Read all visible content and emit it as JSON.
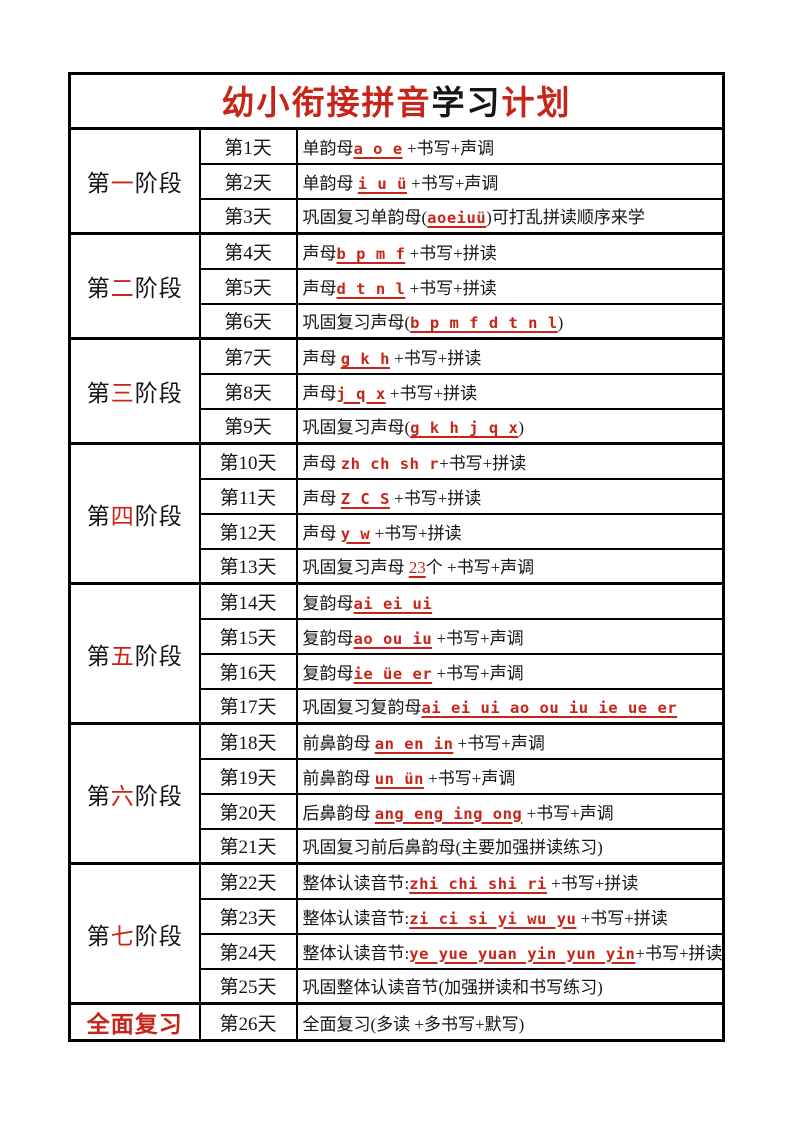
{
  "colors": {
    "accent_red": "#c8251a",
    "text_black": "#151515",
    "border_black": "#000000",
    "page_background": "#ffffff"
  },
  "title": {
    "segments": [
      {
        "t": "幼小衔接拼音",
        "red": true
      },
      {
        "t": "学习",
        "red": false
      },
      {
        "t": "计划",
        "red": true
      }
    ]
  },
  "table": {
    "stages": [
      {
        "label": [
          {
            "t": "第",
            "red": false
          },
          {
            "t": "一",
            "red": true
          },
          {
            "t": "阶段",
            "red": false
          }
        ],
        "bold": false,
        "rows": [
          {
            "day": "第1天",
            "content": [
              {
                "t": "单韵母",
                "s": "cn"
              },
              {
                "t": "a o e",
                "s": "py",
                "u": true
              },
              {
                "t": " +书写+声调",
                "s": "cn"
              }
            ]
          },
          {
            "day": "第2天",
            "content": [
              {
                "t": "单韵母 ",
                "s": "cn"
              },
              {
                "t": "i u ü",
                "s": "py",
                "u": true
              },
              {
                "t": " +书写+声调",
                "s": "cn"
              }
            ]
          },
          {
            "day": "第3天",
            "content": [
              {
                "t": "巩固复习单韵母(",
                "s": "cn"
              },
              {
                "t": "aoeiuü",
                "s": "py",
                "u": true
              },
              {
                "t": ")可打乱拼读顺序来学",
                "s": "cn"
              }
            ]
          }
        ]
      },
      {
        "label": [
          {
            "t": "第",
            "red": false
          },
          {
            "t": "二",
            "red": true
          },
          {
            "t": "阶段",
            "red": false
          }
        ],
        "bold": false,
        "rows": [
          {
            "day": "第4天",
            "content": [
              {
                "t": "声母",
                "s": "cn"
              },
              {
                "t": "b p m f",
                "s": "py",
                "u": true
              },
              {
                "t": " +书写+拼读",
                "s": "cn"
              }
            ]
          },
          {
            "day": "第5天",
            "content": [
              {
                "t": "声母",
                "s": "cn"
              },
              {
                "t": "d t n l",
                "s": "py",
                "u": true
              },
              {
                "t": " +书写+拼读",
                "s": "cn"
              }
            ]
          },
          {
            "day": "第6天",
            "content": [
              {
                "t": "巩固复习声母(",
                "s": "cn"
              },
              {
                "t": "b p m f d t n l",
                "s": "py",
                "u": true
              },
              {
                "t": ")",
                "s": "cn"
              }
            ]
          }
        ]
      },
      {
        "label": [
          {
            "t": "第",
            "red": false
          },
          {
            "t": "三",
            "red": true
          },
          {
            "t": "阶段",
            "red": false
          }
        ],
        "bold": false,
        "rows": [
          {
            "day": "第7天",
            "content": [
              {
                "t": "声母 ",
                "s": "cn"
              },
              {
                "t": "g k h",
                "s": "py",
                "u": true
              },
              {
                "t": " +书写+拼读",
                "s": "cn"
              }
            ]
          },
          {
            "day": "第8天",
            "content": [
              {
                "t": "声母",
                "s": "cn"
              },
              {
                "t": "j q x",
                "s": "py",
                "u": true
              },
              {
                "t": " +书写+拼读",
                "s": "cn"
              }
            ]
          },
          {
            "day": "第9天",
            "content": [
              {
                "t": "巩固复习声母(",
                "s": "cn"
              },
              {
                "t": "g k h j q x",
                "s": "py",
                "u": true
              },
              {
                "t": ")",
                "s": "cn"
              }
            ]
          }
        ]
      },
      {
        "label": [
          {
            "t": "第",
            "red": false
          },
          {
            "t": "四",
            "red": true
          },
          {
            "t": "阶段",
            "red": false
          }
        ],
        "bold": false,
        "rows": [
          {
            "day": "第10天",
            "content": [
              {
                "t": "声母 ",
                "s": "cn"
              },
              {
                "t": "zh ch sh r",
                "s": "py",
                "u": false
              },
              {
                "t": "+书写+拼读",
                "s": "cn"
              }
            ]
          },
          {
            "day": "第11天",
            "content": [
              {
                "t": "声母 ",
                "s": "cn"
              },
              {
                "t": "Z C S",
                "s": "py",
                "u": true
              },
              {
                "t": " +书写+拼读",
                "s": "cn"
              }
            ]
          },
          {
            "day": "第12天",
            "content": [
              {
                "t": "声母 ",
                "s": "cn"
              },
              {
                "t": "y w",
                "s": "py",
                "u": true
              },
              {
                "t": " +书写+拼读",
                "s": "cn"
              }
            ]
          },
          {
            "day": "第13天",
            "content": [
              {
                "t": "巩固复习声母 ",
                "s": "cn"
              },
              {
                "t": "23",
                "s": "num"
              },
              {
                "t": "个 +书写+声调",
                "s": "cn"
              }
            ]
          }
        ]
      },
      {
        "label": [
          {
            "t": "第",
            "red": false
          },
          {
            "t": "五",
            "red": true
          },
          {
            "t": "阶段",
            "red": false
          }
        ],
        "bold": false,
        "rows": [
          {
            "day": "第14天",
            "content": [
              {
                "t": "复韵母",
                "s": "cn"
              },
              {
                "t": "ai ei ui",
                "s": "py",
                "u": true
              }
            ]
          },
          {
            "day": "第15天",
            "content": [
              {
                "t": "复韵母",
                "s": "cn"
              },
              {
                "t": "ao ou iu",
                "s": "py",
                "u": true
              },
              {
                "t": " +书写+声调",
                "s": "cn"
              }
            ]
          },
          {
            "day": "第16天",
            "content": [
              {
                "t": "复韵母",
                "s": "cn"
              },
              {
                "t": "ie üe er",
                "s": "py",
                "u": true
              },
              {
                "t": " +书写+声调",
                "s": "cn"
              }
            ]
          },
          {
            "day": "第17天",
            "content": [
              {
                "t": "巩固复习复韵母",
                "s": "cn"
              },
              {
                "t": "ai ei ui ao ou iu ie ue er",
                "s": "py",
                "u": true
              }
            ]
          }
        ]
      },
      {
        "label": [
          {
            "t": "第",
            "red": false
          },
          {
            "t": "六",
            "red": true
          },
          {
            "t": "阶段",
            "red": false
          }
        ],
        "bold": false,
        "rows": [
          {
            "day": "第18天",
            "content": [
              {
                "t": "前鼻韵母 ",
                "s": "cn"
              },
              {
                "t": "an en in",
                "s": "py",
                "u": true
              },
              {
                "t": " +书写+声调",
                "s": "cn"
              }
            ]
          },
          {
            "day": "第19天",
            "content": [
              {
                "t": "前鼻韵母 ",
                "s": "cn"
              },
              {
                "t": "un ün",
                "s": "py",
                "u": true
              },
              {
                "t": " +书写+声调",
                "s": "cn"
              }
            ]
          },
          {
            "day": "第20天",
            "content": [
              {
                "t": "后鼻韵母 ",
                "s": "cn"
              },
              {
                "t": "ang eng ing ong",
                "s": "py",
                "u": true
              },
              {
                "t": " +书写+声调",
                "s": "cn"
              }
            ]
          },
          {
            "day": "第21天",
            "content": [
              {
                "t": "巩固复习前后鼻韵母(主要加强拼读练习)",
                "s": "cn"
              }
            ]
          }
        ]
      },
      {
        "label": [
          {
            "t": "第",
            "red": false
          },
          {
            "t": "七",
            "red": true
          },
          {
            "t": "阶段",
            "red": false
          }
        ],
        "bold": false,
        "rows": [
          {
            "day": "第22天",
            "content": [
              {
                "t": "整体认读音节:",
                "s": "cn"
              },
              {
                "t": "zhi chi shi ri",
                "s": "py",
                "u": true
              },
              {
                "t": " +书写+拼读",
                "s": "cn"
              }
            ]
          },
          {
            "day": "第23天",
            "content": [
              {
                "t": "整体认读音节:",
                "s": "cn"
              },
              {
                "t": "zi ci si yi wu yu",
                "s": "py",
                "u": true
              },
              {
                "t": " +书写+拼读",
                "s": "cn"
              }
            ]
          },
          {
            "day": "第24天",
            "content": [
              {
                "t": "整体认读音节:",
                "s": "cn"
              },
              {
                "t": "ye yue yuan yin yun yin",
                "s": "py",
                "u": true
              },
              {
                "t": "+书写+拼读",
                "s": "cn"
              }
            ]
          },
          {
            "day": "第25天",
            "content": [
              {
                "t": "巩固整体认读音节(加强拼读和书写练习)",
                "s": "cn"
              }
            ]
          }
        ]
      },
      {
        "label": [
          {
            "t": "全面复习",
            "red": true
          }
        ],
        "bold": true,
        "rows": [
          {
            "day": "第26天",
            "content": [
              {
                "t": "全面复习(多读 +多书写+默写)",
                "s": "cn"
              }
            ]
          }
        ]
      }
    ]
  }
}
